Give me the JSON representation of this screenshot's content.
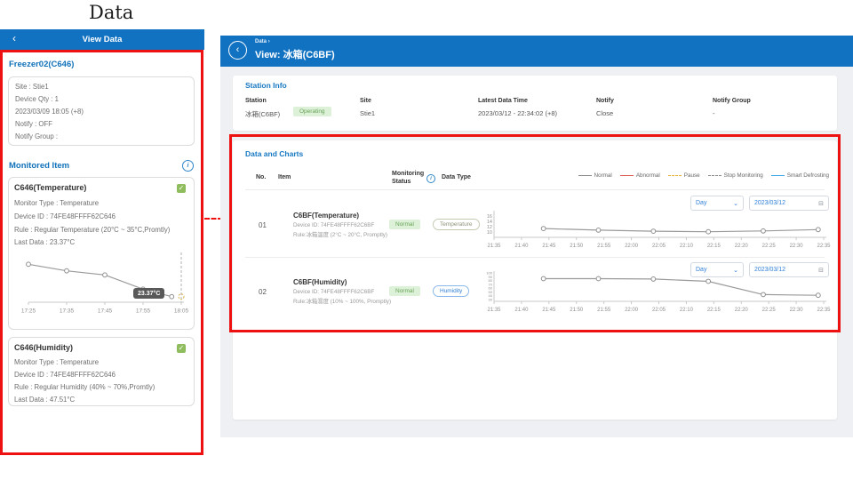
{
  "annotation": {
    "title": "Data"
  },
  "icons": {
    "back": "‹",
    "crumb_sep": "›",
    "check": "✓",
    "info": "i",
    "chevron_down": "⌄",
    "calendar": "⊟"
  },
  "left_app": {
    "header": {
      "title": "View Data"
    },
    "station_name": "Freezer02(C646)",
    "info_lines": [
      "Site : Stie1",
      "Device Qty : 1",
      "2023/03/09 18:05 (+8)",
      "Notify : OFF",
      "Notify Group :"
    ],
    "monitored_item_label": "Monitored Item",
    "cards": [
      {
        "title": "C646(Temperature)",
        "lines": [
          "Monitor Type : Temperature",
          "Device ID : 74FE48FFFF62C646",
          "Rule : Regular Temperature (20°C ~ 35°C,Promtly)",
          "Last Data : 23.37°C"
        ],
        "tooltip": "23.37°C"
      },
      {
        "title": "C646(Humidity)",
        "lines": [
          "Monitor Type : Temperature",
          "Device ID : 74FE48FFFF62C646",
          "Rule : Regular Humidity (40% ~ 70%,Promtly)",
          "Last Data : 47.51°C"
        ]
      }
    ]
  },
  "right_app": {
    "header": {
      "breadcrumb": "Data",
      "title": "View: 冰箱(C6BF)"
    },
    "station_info": {
      "heading": "Station Info",
      "columns": [
        "Station",
        "Site",
        "Latest Data Time",
        "Notify",
        "Notify Group"
      ],
      "station_value": "冰箱(C6BF)",
      "status_badge": "Operating",
      "site_value": "Stie1",
      "latest_value": "2023/03/12 - 22:34:02 (+8)",
      "notify_value": "Close",
      "notify_group_value": "-"
    },
    "charts_section": {
      "heading": "Data and Charts",
      "table_headers": {
        "no": "No.",
        "item": "Item",
        "status_l1": "Monitoring",
        "status_l2": "Status",
        "data_type": "Data Type"
      },
      "legend": [
        {
          "label": "Normal",
          "color": "#8c8c8c",
          "line_style": "solid"
        },
        {
          "label": "Abnormal",
          "color": "#e05b52",
          "line_style": "solid"
        },
        {
          "label": "Pause",
          "color": "#e8b33c",
          "line_style": "dashed"
        },
        {
          "label": "Stop Monitoring",
          "color": "#8c8c8c",
          "line_style": "dashed"
        },
        {
          "label": "Smart Defrosting",
          "color": "#3da8e8",
          "line_style": "solid"
        }
      ],
      "rows": [
        {
          "no": "01",
          "title": "C6BF(Temperature)",
          "device": "Device ID: 74FE48FFFF62C6BF",
          "rule": "Rule:冰箱溫度 (2°C ~ 20°C, Promptly)",
          "status": "Normal",
          "data_type": "Temperature",
          "range_select": "Day",
          "date": "2023/03/12"
        },
        {
          "no": "02",
          "title": "C6BF(Humidity)",
          "device": "Device ID: 74FE48FFFF62C6BF",
          "rule": "Rule:冰箱濕度 (10% ~ 100%, Promptly)",
          "status": "Normal",
          "data_type": "Humidity",
          "range_select": "Day",
          "date": "2023/03/12"
        }
      ]
    }
  },
  "chart_data": [
    {
      "id": "left-temp",
      "type": "line",
      "series_name": "C646 Temperature (°C)",
      "x_labels": [
        "17:25",
        "17:35",
        "17:45",
        "17:55",
        "18:05"
      ],
      "points": [
        {
          "t": 0,
          "v": 26.1
        },
        {
          "t": 10,
          "v": 25.55
        },
        {
          "t": 20,
          "v": 25.2
        },
        {
          "t": 30,
          "v": 24.0
        },
        {
          "t": 37.5,
          "v": 23.37
        }
      ],
      "t_max": 40,
      "y_range": [
        22.9,
        26.5
      ],
      "y_ticks": [],
      "dash_t": 40,
      "tooltip": "23.37°C",
      "line_color": "#9a9a9a"
    },
    {
      "id": "row1-temp",
      "type": "line",
      "series_name": "C6BF Temperature (°C)",
      "x_labels": [
        "21:35",
        "21:40",
        "21:45",
        "21:50",
        "21:55",
        "22:00",
        "22:05",
        "22:10",
        "22:15",
        "22:20",
        "22:25",
        "22:30",
        "22:35"
      ],
      "points": [
        {
          "t": 9,
          "v": 11.3
        },
        {
          "t": 19,
          "v": 10.7
        },
        {
          "t": 29,
          "v": 10.3
        },
        {
          "t": 39,
          "v": 10.1
        },
        {
          "t": 49,
          "v": 10.4
        },
        {
          "t": 59,
          "v": 10.9
        }
      ],
      "t_max": 60,
      "y_range": [
        8,
        18
      ],
      "y_ticks": [
        16,
        14,
        12,
        10
      ],
      "y_axis": true,
      "line_color": "#9a9a9a"
    },
    {
      "id": "row2-hum",
      "type": "line",
      "series_name": "C6BF Humidity (%)",
      "x_labels": [
        "21:35",
        "21:40",
        "21:45",
        "21:50",
        "21:55",
        "22:00",
        "22:05",
        "22:10",
        "22:15",
        "22:20",
        "22:25",
        "22:30",
        "22:35"
      ],
      "points": [
        {
          "t": 9,
          "v": 85
        },
        {
          "t": 19,
          "v": 85
        },
        {
          "t": 29,
          "v": 84
        },
        {
          "t": 39,
          "v": 78
        },
        {
          "t": 49,
          "v": 43
        },
        {
          "t": 59,
          "v": 41
        }
      ],
      "t_max": 60,
      "y_range": [
        25,
        105
      ],
      "y_ticks": [
        100,
        90,
        80,
        70,
        60,
        50,
        40,
        30
      ],
      "y_axis": true,
      "line_color": "#9a9a9a"
    }
  ]
}
